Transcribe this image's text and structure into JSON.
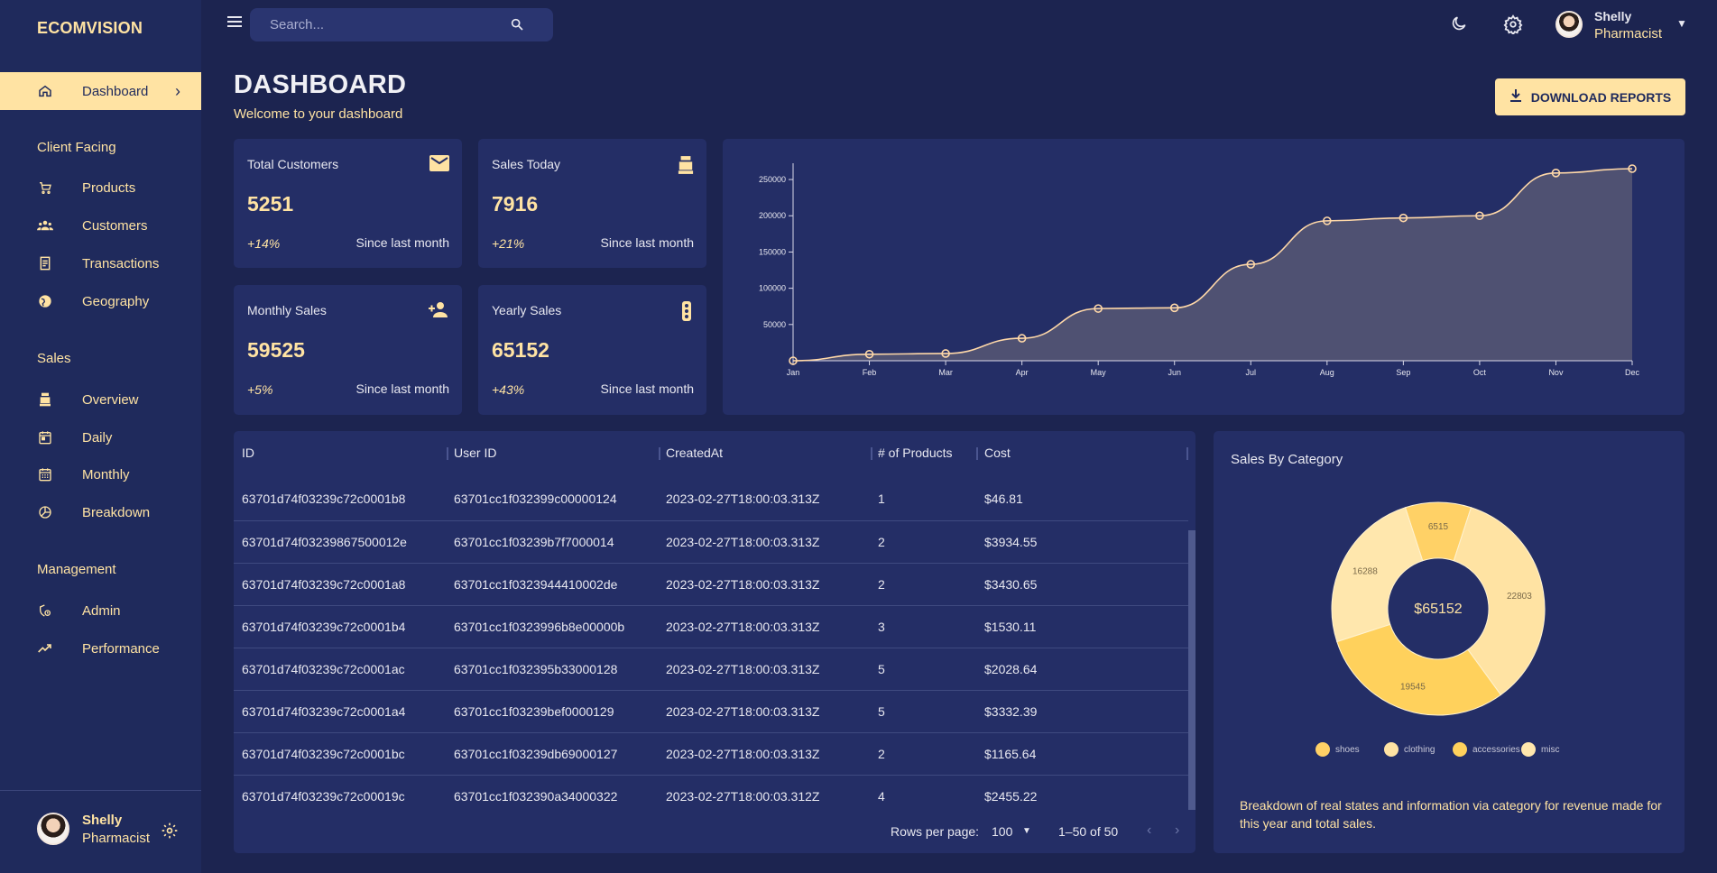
{
  "app": {
    "brand": "ECOMVISION"
  },
  "sidebar": {
    "active": {
      "label": "Dashboard",
      "icon": "home-icon"
    },
    "sections": [
      {
        "title": "Client Facing",
        "items": [
          {
            "label": "Products",
            "icon": "cart-icon"
          },
          {
            "label": "Customers",
            "icon": "groups-icon"
          },
          {
            "label": "Transactions",
            "icon": "receipt-icon"
          },
          {
            "label": "Geography",
            "icon": "globe-icon"
          }
        ]
      },
      {
        "title": "Sales",
        "items": [
          {
            "label": "Overview",
            "icon": "point-of-sale-icon"
          },
          {
            "label": "Daily",
            "icon": "today-icon"
          },
          {
            "label": "Monthly",
            "icon": "calendar-month-icon"
          },
          {
            "label": "Breakdown",
            "icon": "pie-chart-icon"
          }
        ]
      },
      {
        "title": "Management",
        "items": [
          {
            "label": "Admin",
            "icon": "admin-icon"
          },
          {
            "label": "Performance",
            "icon": "trending-up-icon"
          }
        ]
      }
    ],
    "user": {
      "name": "Shelly",
      "role": "Pharmacist"
    }
  },
  "topbar": {
    "search_placeholder": "Search...",
    "user": {
      "name": "Shelly",
      "role": "Pharmacist"
    }
  },
  "header": {
    "title": "DASHBOARD",
    "subtitle": "Welcome to your dashboard",
    "download_label": "DOWNLOAD REPORTS"
  },
  "stats": [
    {
      "title": "Total Customers",
      "value": "5251",
      "delta": "+14%",
      "since": "Since last month",
      "icon": "email-icon"
    },
    {
      "title": "Sales Today",
      "value": "7916",
      "delta": "+21%",
      "since": "Since last month",
      "icon": "point-of-sale-icon"
    },
    {
      "title": "Monthly Sales",
      "value": "59525",
      "delta": "+5%",
      "since": "Since last month",
      "icon": "person-add-icon"
    },
    {
      "title": "Yearly Sales",
      "value": "65152",
      "delta": "+43%",
      "since": "Since last month",
      "icon": "traffic-icon"
    }
  ],
  "table": {
    "columns": [
      "ID",
      "User ID",
      "CreatedAt",
      "# of Products",
      "Cost"
    ],
    "rows": [
      [
        "63701d74f03239c72c0001b8",
        "63701cc1f032399c00000124",
        "2023-02-27T18:00:03.313Z",
        "1",
        "$46.81"
      ],
      [
        "63701d74f03239867500012e",
        "63701cc1f03239b7f7000014",
        "2023-02-27T18:00:03.313Z",
        "2",
        "$3934.55"
      ],
      [
        "63701d74f03239c72c0001a8",
        "63701cc1f0323944410002de",
        "2023-02-27T18:00:03.313Z",
        "2",
        "$3430.65"
      ],
      [
        "63701d74f03239c72c0001b4",
        "63701cc1f0323996b8e00000b",
        "2023-02-27T18:00:03.313Z",
        "3",
        "$1530.11"
      ],
      [
        "63701d74f03239c72c0001ac",
        "63701cc1f032395b33000128",
        "2023-02-27T18:00:03.313Z",
        "5",
        "$2028.64"
      ],
      [
        "63701d74f03239c72c0001a4",
        "63701cc1f03239bef0000129",
        "2023-02-27T18:00:03.313Z",
        "5",
        "$3332.39"
      ],
      [
        "63701d74f03239c72c0001bc",
        "63701cc1f03239db69000127",
        "2023-02-27T18:00:03.313Z",
        "2",
        "$1165.64"
      ],
      [
        "63701d74f03239c72c00019c",
        "63701cc1f032390a34000322",
        "2023-02-27T18:00:03.312Z",
        "4",
        "$2455.22"
      ]
    ],
    "rows_per_page_label": "Rows per page:",
    "rows_per_page_value": "100",
    "page_range": "1–50 of 50"
  },
  "category": {
    "title": "Sales By Category",
    "description": "Breakdown of real states and information via category for revenue made for this year and total sales."
  },
  "colors": {
    "accent": "#ffe3a3",
    "bg": "#1c2450",
    "panel": "#242e66",
    "sidebar": "#1f2a5c"
  },
  "chart_data": [
    {
      "type": "area",
      "title": "",
      "x": [
        "Jan",
        "Feb",
        "Mar",
        "Apr",
        "May",
        "Jun",
        "Jul",
        "Aug",
        "Sep",
        "Oct",
        "Nov",
        "Dec"
      ],
      "values": [
        0,
        9000,
        10000,
        31000,
        72000,
        73000,
        133000,
        193000,
        197000,
        200000,
        259000,
        265000
      ],
      "yticks": [
        50000,
        100000,
        150000,
        200000,
        250000
      ],
      "ylim": [
        0,
        265000
      ]
    },
    {
      "type": "pie",
      "title": "Sales By Category",
      "center_label": "$65152",
      "labels": [
        "shoes",
        "clothing",
        "accessories",
        "misc"
      ],
      "values": [
        6515,
        22803,
        19545,
        16288
      ],
      "colors": [
        "#ffd166",
        "#ffe3a3",
        "#ffd15c",
        "#ffe7ad"
      ]
    }
  ]
}
